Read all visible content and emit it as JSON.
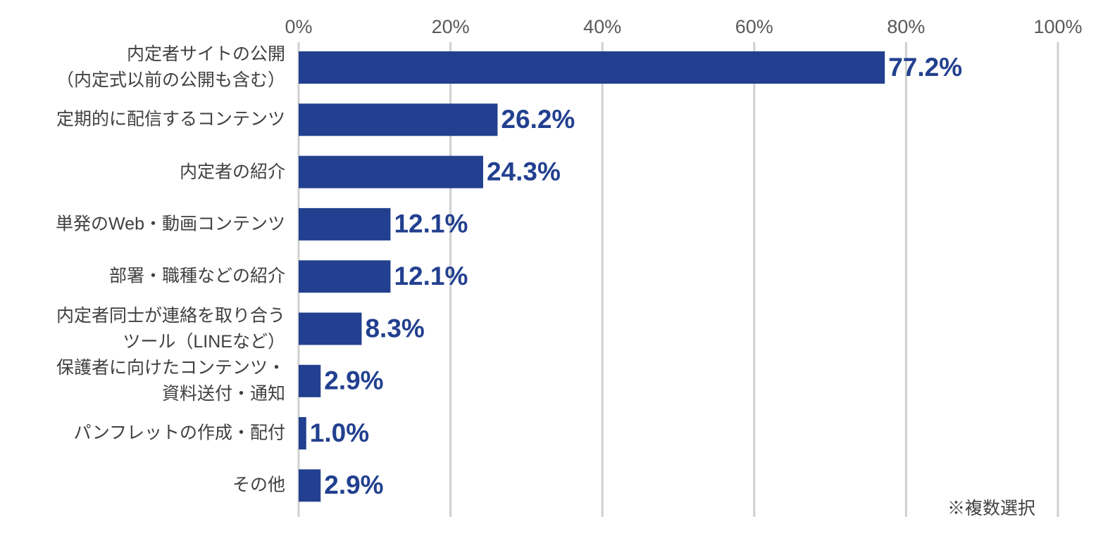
{
  "chart_data": {
    "type": "hbar",
    "categories": [
      "内定者サイトの公開\n（内定式以前の公開も含む）",
      "定期的に配信するコンテンツ",
      "内定者の紹介",
      "単発のWeb・動画コンテンツ",
      "部署・職種などの紹介",
      "内定者同士が連絡を取り合う\nツール（LINEなど）",
      "保護者に向けたコンテンツ・\n資料送付・通知",
      "パンフレットの作成・配付",
      "その他"
    ],
    "values": [
      77.2,
      26.2,
      24.3,
      12.1,
      12.1,
      8.3,
      2.9,
      1.0,
      2.9
    ],
    "value_labels": [
      "77.2%",
      "26.2%",
      "24.3%",
      "12.1%",
      "12.1%",
      "8.3%",
      "2.9%",
      "1.0%",
      "2.9%"
    ],
    "color": "#22408f",
    "xlim": [
      0,
      100
    ],
    "xticks": [
      {
        "value": 0,
        "label": "0%"
      },
      {
        "value": 20,
        "label": "20%"
      },
      {
        "value": 40,
        "label": "40%"
      },
      {
        "value": 60,
        "label": "60%"
      },
      {
        "value": 80,
        "label": "80%"
      },
      {
        "value": 100,
        "label": "100%"
      }
    ],
    "grid": true,
    "annotation": "※複数選択"
  }
}
